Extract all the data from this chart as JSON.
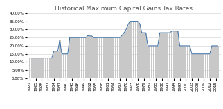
{
  "title": "Historical Maximum Capital Gains Tax Rates",
  "years": [
    1922,
    1923,
    1924,
    1925,
    1926,
    1927,
    1928,
    1929,
    1930,
    1931,
    1932,
    1933,
    1934,
    1935,
    1936,
    1937,
    1938,
    1939,
    1940,
    1941,
    1942,
    1943,
    1944,
    1945,
    1946,
    1947,
    1948,
    1949,
    1950,
    1951,
    1952,
    1953,
    1954,
    1955,
    1956,
    1957,
    1958,
    1959,
    1960,
    1961,
    1962,
    1963,
    1964,
    1965,
    1966,
    1967,
    1968,
    1969,
    1970,
    1971,
    1972,
    1973,
    1974,
    1975,
    1976,
    1977,
    1978,
    1979,
    1980,
    1981,
    1982,
    1983,
    1984,
    1985,
    1986,
    1987,
    1988,
    1989,
    1990,
    1991,
    1992,
    1993,
    1994,
    1995,
    1996,
    1997,
    1998,
    1999,
    2000,
    2001,
    2002,
    2003,
    2004,
    2005,
    2006,
    2007,
    2008,
    2009,
    2010,
    2011,
    2012,
    2013,
    2014,
    2015,
    2016
  ],
  "rates": [
    0.125,
    0.125,
    0.125,
    0.125,
    0.125,
    0.125,
    0.125,
    0.125,
    0.125,
    0.125,
    0.125,
    0.125,
    0.1667,
    0.1667,
    0.1667,
    0.2333,
    0.15,
    0.15,
    0.15,
    0.15,
    0.25,
    0.25,
    0.25,
    0.25,
    0.25,
    0.25,
    0.25,
    0.25,
    0.25,
    0.2626,
    0.26,
    0.26,
    0.25,
    0.25,
    0.25,
    0.25,
    0.25,
    0.25,
    0.25,
    0.25,
    0.25,
    0.25,
    0.25,
    0.25,
    0.25,
    0.25,
    0.2625,
    0.2775,
    0.295,
    0.325,
    0.35,
    0.35,
    0.35,
    0.35,
    0.35,
    0.335,
    0.28,
    0.28,
    0.28,
    0.2,
    0.2,
    0.2,
    0.2,
    0.2,
    0.2,
    0.28,
    0.28,
    0.28,
    0.28,
    0.28,
    0.28,
    0.29,
    0.29,
    0.29,
    0.29,
    0.2,
    0.2,
    0.2,
    0.2,
    0.2,
    0.2,
    0.15,
    0.15,
    0.15,
    0.15,
    0.15,
    0.15,
    0.15,
    0.15,
    0.15,
    0.15,
    0.2,
    0.2,
    0.2,
    0.2
  ],
  "bar_color": "#c8c8c8",
  "line_color": "#3a6ea5",
  "ylim": [
    0.0,
    0.4
  ],
  "yticks": [
    0.0,
    0.05,
    0.1,
    0.15,
    0.2,
    0.25,
    0.3,
    0.35,
    0.4
  ],
  "title_fontsize": 6.5,
  "tick_fontsize": 4.0,
  "background_color": "#ffffff",
  "grid_color": "#d8d8d8",
  "xtick_step": 3
}
